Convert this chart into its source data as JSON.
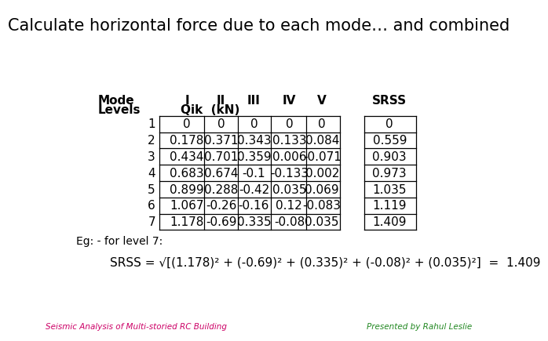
{
  "title": "Calculate horizontal force due to each mode… and combined",
  "title_fontsize": 15,
  "bg_color": "#ffffff",
  "levels": [
    1,
    2,
    3,
    4,
    5,
    6,
    7
  ],
  "data": [
    [
      0,
      0,
      0,
      0,
      0,
      0
    ],
    [
      0.178,
      0.371,
      0.343,
      0.133,
      0.084,
      0.559
    ],
    [
      0.434,
      0.701,
      0.359,
      0.006,
      -0.071,
      0.903
    ],
    [
      0.683,
      0.674,
      -0.1,
      -0.133,
      0.002,
      0.973
    ],
    [
      0.899,
      0.288,
      -0.42,
      0.035,
      0.069,
      1.035
    ],
    [
      1.067,
      -0.26,
      -0.16,
      0.12,
      -0.083,
      1.119
    ],
    [
      1.178,
      -0.69,
      0.335,
      -0.08,
      0.035,
      1.409
    ]
  ],
  "col_labels": [
    "I",
    "II",
    "III",
    "IV",
    "V"
  ],
  "col_display": [
    "0",
    "0",
    "0",
    "0",
    "0"
  ],
  "eg_label": "Eg: - for level 7:",
  "formula_main": "SRSS = ",
  "formula_sqrt": "√",
  "formula_body": "[(1.178)² + (-0.69)² + (0.335)² + (-0.08)² + (0.035)²]",
  "formula_result": "  =  1.409",
  "footer_left": "Seismic Analysis of Multi-storied RC Building",
  "footer_right": "Presented by Rahul Leslie",
  "footer_left_color": "#cc0066",
  "footer_right_color": "#228822",
  "table_font_size": 11,
  "header_font_size": 11,
  "mode_label": "Mode",
  "levels_label": "Levels",
  "qik_label": "Qik  (kN)",
  "srss_label": "SRSS"
}
